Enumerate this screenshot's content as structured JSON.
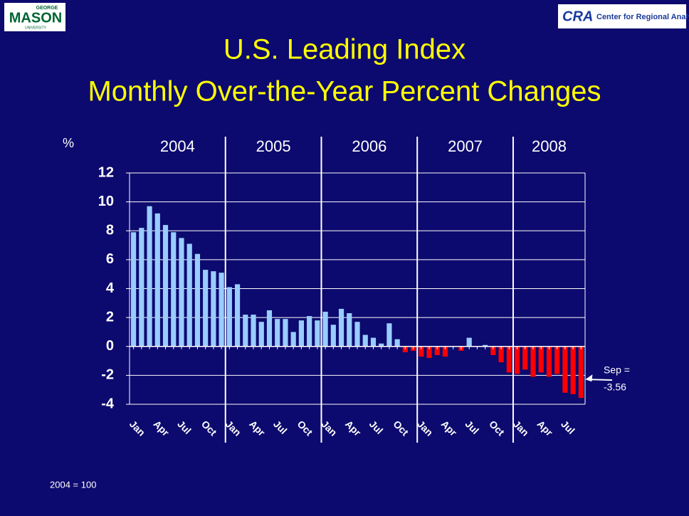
{
  "logos": {
    "left_top": "GEORGE",
    "left_main": "MASON",
    "left_bottom": "UNIVERSITY",
    "right_mark": "CRA",
    "right_name": "Center for Regional Analysis"
  },
  "chart_data": {
    "type": "bar",
    "title": [
      "U.S. Leading Index",
      "Monthly Over-the-Year Percent Changes"
    ],
    "y_label": "%",
    "years": [
      "2004",
      "2005",
      "2006",
      "2007",
      "2008"
    ],
    "categories": [
      "Jan",
      null,
      null,
      "Apr",
      null,
      null,
      "Jul",
      null,
      null,
      "Oct",
      null,
      null,
      "Jan",
      null,
      null,
      "Apr",
      null,
      null,
      "Jul",
      null,
      null,
      "Oct",
      null,
      null,
      "Jan",
      null,
      null,
      "Apr",
      null,
      null,
      "Jul",
      null,
      null,
      "Oct",
      null,
      null,
      "Jan",
      null,
      null,
      "Apr",
      null,
      null,
      "Jul",
      null,
      null,
      "Oct",
      null,
      null,
      "Jan",
      null,
      null,
      "Apr",
      null,
      null,
      "Jul",
      null,
      null
    ],
    "values": [
      7.9,
      8.2,
      9.7,
      9.2,
      8.4,
      7.9,
      7.5,
      7.1,
      6.4,
      5.3,
      5.2,
      5.1,
      4.1,
      4.3,
      2.2,
      2.2,
      1.7,
      2.5,
      1.9,
      1.9,
      1.0,
      1.8,
      2.1,
      1.8,
      2.4,
      1.5,
      2.6,
      2.3,
      1.7,
      0.8,
      0.6,
      0.2,
      1.6,
      0.5,
      -0.4,
      -0.3,
      -0.7,
      -0.8,
      -0.6,
      -0.7,
      0.0,
      -0.3,
      0.6,
      0.0,
      0.1,
      -0.6,
      -1.1,
      -1.8,
      -1.9,
      -1.6,
      -2.1,
      -1.8,
      -2.1,
      -1.9,
      -3.2,
      -3.3,
      -3.56
    ],
    "color": "#99ccff",
    "negative_color": "#ff0000",
    "ylim": [
      -4,
      12
    ],
    "yticks": [
      -4,
      -2,
      0,
      2,
      4,
      6,
      8,
      10,
      12
    ],
    "grid": true,
    "annotation": [
      "Sep =",
      "-3.56"
    ],
    "footnote": "2004 = 100"
  }
}
